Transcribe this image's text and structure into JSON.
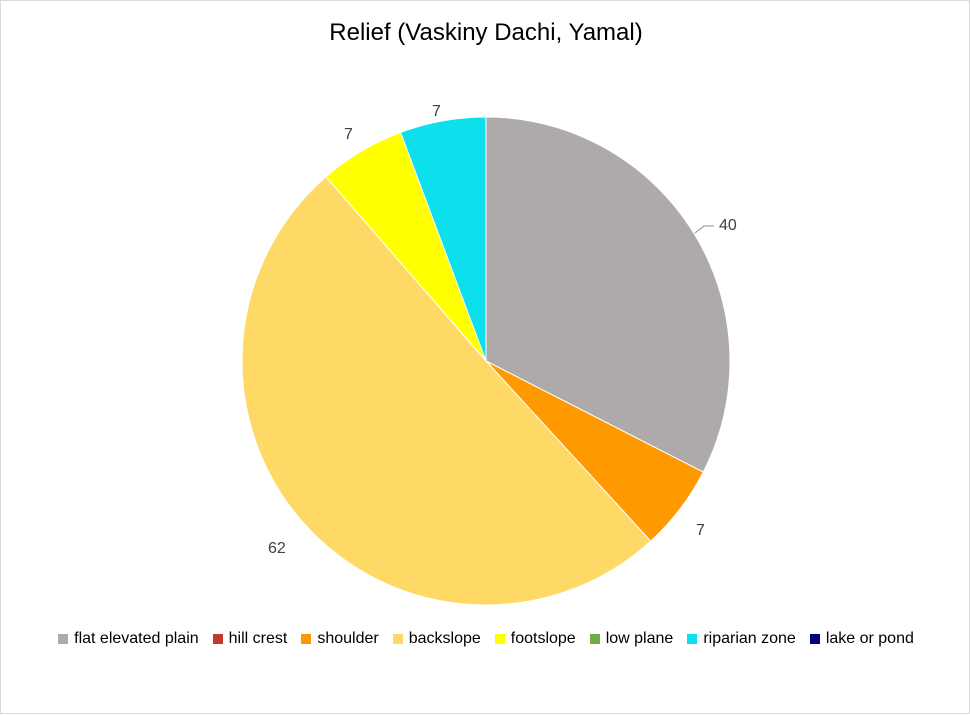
{
  "chart_data": {
    "type": "pie",
    "title": "Relief (Vaskiny Dachi, Yamal)",
    "categories": [
      "flat elevated plain",
      "hill crest",
      "shoulder",
      "backslope",
      "footslope",
      "low plane",
      "riparian zone",
      "lake or pond"
    ],
    "values": [
      40,
      0,
      7,
      62,
      7,
      0,
      7,
      0
    ],
    "colors": [
      "#AEAAAA",
      "#C0392B",
      "#FF9900",
      "#FFD966",
      "#FFFF00",
      "#70AD47",
      "#0DE0EC",
      "#000080"
    ],
    "data_labels": [
      "40",
      "",
      "7",
      "62",
      "7",
      "",
      "7",
      ""
    ],
    "legend_position": "bottom",
    "start_angle": "12 o'clock, clockwise"
  }
}
